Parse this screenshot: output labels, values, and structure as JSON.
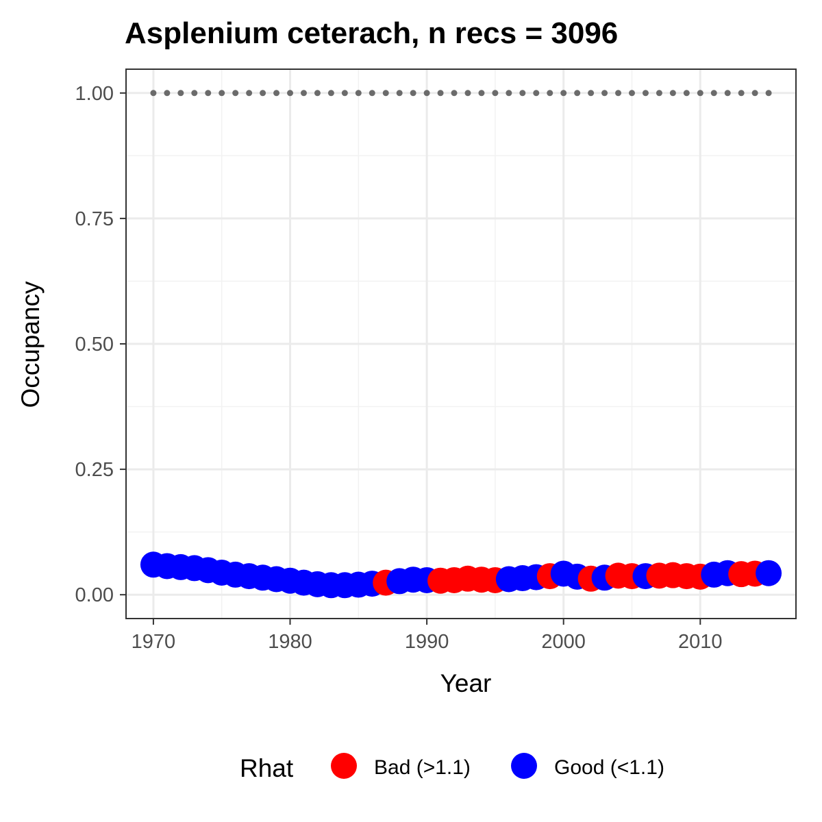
{
  "chart_data": {
    "type": "scatter",
    "title": "Asplenium ceterach, n recs = 3096",
    "xlabel": "Year",
    "ylabel": "Occupancy",
    "xlim": [
      1968,
      2017
    ],
    "ylim": [
      -0.0475,
      1.0475
    ],
    "x_ticks": [
      1970,
      1980,
      1990,
      2000,
      2010
    ],
    "x_tick_labels": [
      "1970",
      "1980",
      "1990",
      "2000",
      "2010"
    ],
    "y_ticks": [
      0,
      0.25,
      0.5,
      0.75,
      1
    ],
    "y_tick_labels": [
      "0.00",
      "0.25",
      "0.50",
      "0.75",
      "1.00"
    ],
    "grid": true,
    "legend": {
      "title": "Rhat",
      "position": "bottom",
      "entries": [
        {
          "label": "Bad (>1.1)",
          "color": "#ff0000"
        },
        {
          "label": "Good (<1.1)",
          "color": "#0000ff"
        }
      ]
    },
    "colors": {
      "Bad": "#ff0000",
      "Good": "#0000ff",
      "reference": "#6b6b6b"
    },
    "reference_series": {
      "style": "dotted",
      "x": [
        1970,
        1971,
        1972,
        1973,
        1974,
        1975,
        1976,
        1977,
        1978,
        1979,
        1980,
        1981,
        1982,
        1983,
        1984,
        1985,
        1986,
        1987,
        1988,
        1989,
        1990,
        1991,
        1992,
        1993,
        1994,
        1995,
        1996,
        1997,
        1998,
        1999,
        2000,
        2001,
        2002,
        2003,
        2004,
        2005,
        2006,
        2007,
        2008,
        2009,
        2010,
        2011,
        2012,
        2013,
        2014,
        2015
      ],
      "y": [
        1,
        1,
        1,
        1,
        1,
        1,
        1,
        1,
        1,
        1,
        1,
        1,
        1,
        1,
        1,
        1,
        1,
        1,
        1,
        1,
        1,
        1,
        1,
        1,
        1,
        1,
        1,
        1,
        1,
        1,
        1,
        1,
        1,
        1,
        1,
        1,
        1,
        1,
        1,
        1,
        1,
        1,
        1,
        1,
        1,
        1
      ]
    },
    "series": [
      {
        "x": [
          1970,
          1971,
          1972,
          1973,
          1974,
          1975,
          1976,
          1977,
          1978,
          1979,
          1980,
          1981,
          1982,
          1983,
          1984,
          1985,
          1986,
          1987,
          1988,
          1989,
          1990,
          1991,
          1992,
          1993,
          1994,
          1995,
          1996,
          1997,
          1998,
          1999,
          2000,
          2001,
          2002,
          2003,
          2004,
          2005,
          2006,
          2007,
          2008,
          2009,
          2010,
          2011,
          2012,
          2013,
          2014,
          2015
        ],
        "y": [
          0.06,
          0.057,
          0.055,
          0.053,
          0.049,
          0.044,
          0.04,
          0.037,
          0.034,
          0.031,
          0.028,
          0.024,
          0.021,
          0.019,
          0.019,
          0.02,
          0.022,
          0.024,
          0.027,
          0.03,
          0.029,
          0.028,
          0.029,
          0.032,
          0.03,
          0.029,
          0.031,
          0.033,
          0.035,
          0.037,
          0.042,
          0.036,
          0.032,
          0.034,
          0.038,
          0.037,
          0.037,
          0.038,
          0.039,
          0.037,
          0.036,
          0.04,
          0.043,
          0.041,
          0.042,
          0.043
        ],
        "rhat": [
          "Good",
          "Good",
          "Good",
          "Good",
          "Good",
          "Good",
          "Good",
          "Good",
          "Good",
          "Good",
          "Good",
          "Good",
          "Good",
          "Good",
          "Good",
          "Good",
          "Good",
          "Bad",
          "Good",
          "Good",
          "Good",
          "Bad",
          "Bad",
          "Bad",
          "Bad",
          "Bad",
          "Good",
          "Good",
          "Good",
          "Bad",
          "Good",
          "Good",
          "Bad",
          "Good",
          "Bad",
          "Bad",
          "Good",
          "Bad",
          "Bad",
          "Bad",
          "Bad",
          "Good",
          "Good",
          "Bad",
          "Bad",
          "Good"
        ]
      }
    ]
  }
}
